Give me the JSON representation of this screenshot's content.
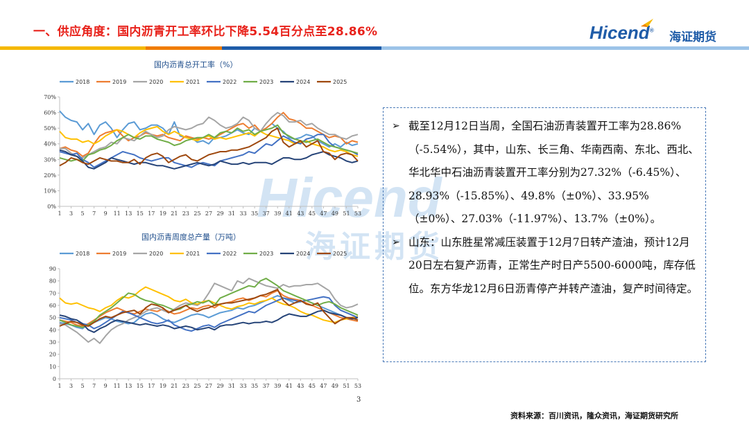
{
  "header": {
    "title": "一、供应角度：国内沥青开工率环比下降5.54百分点至28.86%",
    "logo_en": "Hicend",
    "logo_reg": "®",
    "logo_cn": "海证期货",
    "stripe_colors": [
      "#f5b800",
      "#f07c00",
      "#1f5ca8",
      "#7fb3e0"
    ]
  },
  "watermark": {
    "en": "Hicend",
    "cn": "海证期货"
  },
  "chart_data": [
    {
      "type": "line",
      "title": "国内沥青总开工率（%）",
      "ylim": [
        0,
        70
      ],
      "yticks": [
        "0%",
        "10%",
        "20%",
        "30%",
        "40%",
        "50%",
        "60%",
        "70%"
      ],
      "xticks": [
        "1",
        "3",
        "5",
        "7",
        "9",
        "11",
        "13",
        "15",
        "17",
        "19",
        "21",
        "23",
        "25",
        "27",
        "29",
        "31",
        "33",
        "35",
        "37",
        "39",
        "41",
        "43",
        "45",
        "47",
        "49",
        "51",
        "53"
      ],
      "legend_position": "top",
      "series": [
        {
          "name": "2018",
          "color": "#5b9bd5",
          "values": [
            61,
            57,
            55,
            54,
            49,
            53,
            46,
            52,
            54,
            50,
            44,
            49,
            53,
            54,
            49,
            50,
            52,
            52,
            50,
            46,
            54,
            45,
            44,
            44,
            41,
            42,
            40,
            44,
            44,
            45,
            47,
            49,
            47,
            46,
            50,
            48,
            50,
            53,
            50,
            48,
            44,
            43,
            44,
            46,
            45,
            42,
            40,
            38,
            40,
            38,
            41,
            39,
            40
          ]
        },
        {
          "name": "2019",
          "color": "#ed7d31",
          "values": [
            37,
            38,
            36,
            35,
            32,
            34,
            40,
            45,
            47,
            48,
            49,
            45,
            42,
            44,
            45,
            47,
            46,
            45,
            46,
            44,
            43,
            42,
            45,
            44,
            43,
            44,
            43,
            44,
            46,
            48,
            50,
            52,
            53,
            50,
            52,
            48,
            50,
            53,
            57,
            60,
            56,
            55,
            53,
            50,
            50,
            48,
            46,
            44,
            45,
            44,
            40,
            42,
            41
          ]
        },
        {
          "name": "2020",
          "color": "#a5a5a5",
          "values": [
            37,
            37,
            34,
            32,
            31,
            33,
            35,
            37,
            38,
            41,
            40,
            44,
            43,
            42,
            45,
            48,
            46,
            44,
            45,
            49,
            51,
            50,
            49,
            50,
            52,
            53,
            57,
            55,
            52,
            50,
            51,
            53,
            57,
            55,
            50,
            48,
            53,
            57,
            60,
            58,
            54,
            54,
            55,
            52,
            53,
            50,
            48,
            46,
            46,
            44,
            43,
            45,
            46
          ]
        },
        {
          "name": "2021",
          "color": "#ffc000",
          "values": [
            48,
            44,
            43,
            43,
            41,
            42,
            40,
            42,
            45,
            47,
            49,
            48,
            46,
            44,
            47,
            49,
            50,
            51,
            48,
            46,
            48,
            46,
            44,
            43,
            42,
            44,
            45,
            43,
            44,
            43,
            44,
            45,
            46,
            47,
            45,
            48,
            46,
            45,
            44,
            43,
            42,
            40,
            41,
            42,
            40,
            39,
            38,
            36,
            35,
            36,
            35,
            33,
            32
          ]
        },
        {
          "name": "2022",
          "color": "#4472c4",
          "values": [
            35,
            34,
            33,
            34,
            30,
            28,
            25,
            27,
            29,
            31,
            33,
            35,
            34,
            33,
            31,
            30,
            29,
            30,
            31,
            31,
            28,
            27,
            26,
            25,
            27,
            28,
            27,
            26,
            29,
            30,
            31,
            32,
            33,
            35,
            34,
            37,
            40,
            39,
            42,
            45,
            43,
            41,
            40,
            43,
            44,
            46,
            46,
            41,
            38,
            37,
            36,
            35,
            33
          ]
        },
        {
          "name": "2023",
          "color": "#70ad47",
          "values": [
            31,
            30,
            29,
            30,
            29,
            33,
            34,
            36,
            37,
            39,
            42,
            44,
            46,
            44,
            43,
            45,
            45,
            43,
            42,
            41,
            39,
            40,
            42,
            43,
            44,
            44,
            46,
            44,
            47,
            48,
            47,
            50,
            48,
            49,
            46,
            48,
            49,
            50,
            52,
            47,
            45,
            43,
            42,
            41,
            42,
            43,
            41,
            39,
            38,
            37,
            36,
            35,
            34
          ]
        },
        {
          "name": "2024",
          "color": "#264478",
          "values": [
            36,
            35,
            33,
            32,
            29,
            25,
            24,
            26,
            28,
            31,
            30,
            29,
            28,
            27,
            28,
            28,
            27,
            26,
            26,
            25,
            24,
            25,
            26,
            27,
            28,
            27,
            26,
            27,
            29,
            28,
            27,
            27,
            28,
            27,
            28,
            28,
            28,
            27,
            29,
            31,
            31,
            30,
            30,
            31,
            33,
            34,
            35,
            33,
            32,
            31,
            29,
            28,
            29
          ]
        },
        {
          "name": "2025",
          "color": "#9e480e",
          "values": [
            26,
            28,
            31,
            30,
            28,
            27,
            29,
            31,
            30,
            29,
            29,
            28,
            28,
            30,
            27,
            31,
            33,
            34,
            32,
            28,
            30,
            32,
            33,
            30,
            29,
            31,
            33,
            34,
            35,
            35,
            36,
            36,
            37,
            38,
            40,
            42,
            44,
            48,
            50,
            41,
            38,
            40,
            42,
            38,
            40,
            42,
            35,
            34,
            30,
            33,
            34,
            33,
            29
          ]
        }
      ]
    },
    {
      "type": "line",
      "title": "国内沥青周度总产量（万吨）",
      "ylim": [
        0,
        90
      ],
      "yticks": [
        "0",
        "10",
        "20",
        "30",
        "40",
        "50",
        "60",
        "70",
        "80",
        "90"
      ],
      "xticks": [
        "1",
        "3",
        "5",
        "7",
        "9",
        "11",
        "13",
        "15",
        "17",
        "19",
        "21",
        "23",
        "25",
        "27",
        "29",
        "31",
        "33",
        "35",
        "37",
        "39",
        "41",
        "43",
        "45",
        "47",
        "49",
        "51",
        "53"
      ],
      "legend_position": "top",
      "series": [
        {
          "name": "2018",
          "color": "#5b9bd5",
          "values": [
            46,
            45,
            44,
            42,
            41,
            45,
            46,
            48,
            50,
            49,
            47,
            46,
            45,
            46,
            50,
            53,
            54,
            52,
            49,
            47,
            46,
            48,
            50,
            52,
            53,
            52,
            50,
            52,
            54,
            55,
            56,
            58,
            57,
            59,
            60,
            62,
            64,
            66,
            68,
            66,
            64,
            62,
            63,
            64,
            62,
            60,
            58,
            56,
            54,
            52,
            50,
            49,
            48
          ]
        },
        {
          "name": "2019",
          "color": "#ed7d31",
          "values": [
            48,
            47,
            46,
            44,
            43,
            45,
            48,
            51,
            54,
            56,
            58,
            56,
            54,
            53,
            55,
            57,
            56,
            55,
            57,
            55,
            53,
            54,
            56,
            58,
            57,
            59,
            60,
            58,
            61,
            62,
            63,
            65,
            66,
            64,
            66,
            68,
            67,
            70,
            72,
            68,
            66,
            65,
            64,
            62,
            60,
            58,
            56,
            54,
            52,
            50,
            49,
            48,
            47
          ]
        },
        {
          "name": "2020",
          "color": "#a5a5a5",
          "values": [
            45,
            44,
            41,
            38,
            34,
            30,
            33,
            29,
            35,
            40,
            43,
            45,
            48,
            50,
            52,
            55,
            57,
            58,
            56,
            54,
            57,
            60,
            62,
            61,
            60,
            63,
            70,
            78,
            76,
            74,
            72,
            80,
            78,
            82,
            80,
            78,
            76,
            75,
            74,
            77,
            75,
            76,
            76,
            77,
            77,
            78,
            75,
            72,
            65,
            60,
            58,
            59,
            61
          ]
        },
        {
          "name": "2021",
          "color": "#ffc000",
          "values": [
            66,
            62,
            61,
            62,
            60,
            58,
            57,
            55,
            58,
            60,
            64,
            67,
            66,
            68,
            72,
            75,
            73,
            71,
            69,
            67,
            64,
            63,
            65,
            62,
            61,
            63,
            64,
            62,
            60,
            58,
            57,
            59,
            60,
            62,
            61,
            63,
            64,
            66,
            63,
            61,
            60,
            58,
            55,
            53,
            52,
            50,
            48,
            47,
            46,
            48,
            49,
            50,
            51
          ]
        },
        {
          "name": "2022",
          "color": "#4472c4",
          "values": [
            50,
            49,
            48,
            46,
            45,
            44,
            41,
            43,
            46,
            49,
            52,
            55,
            54,
            52,
            50,
            48,
            46,
            45,
            46,
            48,
            44,
            42,
            40,
            39,
            41,
            43,
            44,
            42,
            45,
            47,
            49,
            51,
            53,
            55,
            54,
            57,
            60,
            62,
            64,
            66,
            65,
            64,
            63,
            64,
            65,
            66,
            67,
            66,
            60,
            56,
            54,
            52,
            50
          ]
        },
        {
          "name": "2023",
          "color": "#70ad47",
          "values": [
            48,
            46,
            44,
            43,
            42,
            44,
            47,
            52,
            55,
            58,
            62,
            66,
            70,
            69,
            66,
            64,
            63,
            61,
            60,
            58,
            56,
            57,
            60,
            61,
            63,
            62,
            64,
            60,
            66,
            68,
            70,
            72,
            74,
            76,
            75,
            80,
            82,
            79,
            76,
            72,
            70,
            68,
            66,
            64,
            62,
            60,
            62,
            63,
            61,
            58,
            56,
            54,
            52
          ]
        },
        {
          "name": "2024",
          "color": "#264478",
          "values": [
            52,
            51,
            49,
            48,
            45,
            40,
            38,
            41,
            43,
            46,
            48,
            47,
            46,
            45,
            44,
            45,
            44,
            43,
            44,
            43,
            41,
            42,
            43,
            42,
            40,
            41,
            42,
            40,
            43,
            44,
            44,
            45,
            46,
            45,
            46,
            46,
            47,
            46,
            48,
            51,
            53,
            52,
            51,
            51,
            53,
            55,
            56,
            54,
            53,
            52,
            50,
            49,
            50
          ]
        },
        {
          "name": "2025",
          "color": "#9e480e",
          "values": [
            43,
            45,
            47,
            46,
            44,
            43,
            46,
            49,
            51,
            50,
            52,
            54,
            55,
            56,
            53,
            58,
            61,
            60,
            58,
            54,
            56,
            58,
            60,
            57,
            55,
            57,
            58,
            60,
            61,
            62,
            62,
            63,
            64,
            65,
            66,
            68,
            69,
            71,
            73,
            64,
            60,
            62,
            64,
            61,
            60,
            62,
            55,
            50,
            45,
            48,
            50,
            50,
            48
          ]
        }
      ]
    }
  ],
  "textbox": {
    "bullets": [
      "截至12月12日当周，全国石油沥青装置开工率为28.86%（-5.54%），其中，山东、长三角、华南西南、东北、西北、华北华中石油沥青装置开工率分别为27.32%（-6.45%）、28.93%（-15.85%）、49.8%（±0%）、33.95%（±0%）、27.03%（-11.97%）、13.7%（±0%）。",
      "山东：山东胜星常减压装置于12月7日转产渣油，预计12月20日左右复产沥青，正常生产时日产5500-6000吨，库存低位。东方华龙12月6日沥青停产并转产渣油，复产时间待定。"
    ],
    "bullet_symbol": "➢"
  },
  "footer": {
    "page_number": "3",
    "source": "资料来源：百川资讯，隆众资讯，海证期货研究所"
  }
}
